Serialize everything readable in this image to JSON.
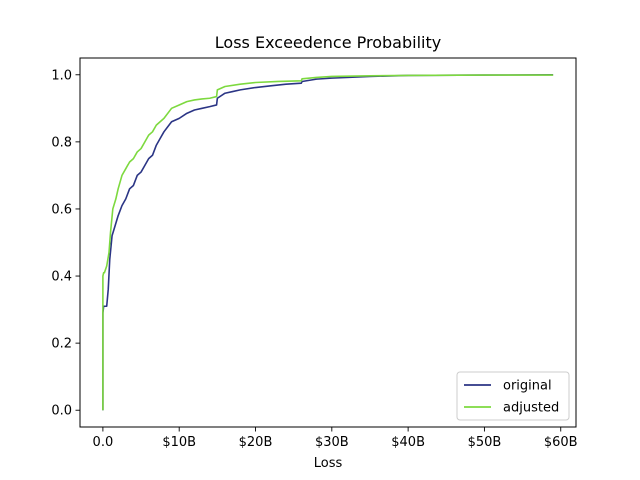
{
  "chart_data": {
    "type": "line",
    "title": "Loss Exceedence Probability",
    "xlabel": "Loss",
    "ylabel": "",
    "xlim": [
      -3.0,
      62.0
    ],
    "ylim": [
      -0.05,
      1.05
    ],
    "x_ticks": [
      {
        "value": 0,
        "label": "0.0"
      },
      {
        "value": 10,
        "label": "$10B"
      },
      {
        "value": 20,
        "label": "$20B"
      },
      {
        "value": 30,
        "label": "$30B"
      },
      {
        "value": 40,
        "label": "$40B"
      },
      {
        "value": 50,
        "label": "$50B"
      },
      {
        "value": 60,
        "label": "$60B"
      }
    ],
    "y_ticks": [
      {
        "value": 0.0,
        "label": "0.0"
      },
      {
        "value": 0.2,
        "label": "0.2"
      },
      {
        "value": 0.4,
        "label": "0.4"
      },
      {
        "value": 0.6,
        "label": "0.6"
      },
      {
        "value": 0.8,
        "label": "0.8"
      },
      {
        "value": 1.0,
        "label": "1.0"
      }
    ],
    "grid": false,
    "legend_position": "bottom-right",
    "series": [
      {
        "name": "original",
        "color": "#2b3585",
        "x": [
          0.0,
          0.0,
          0.1,
          0.2,
          0.5,
          0.7,
          0.9,
          1.2,
          1.6,
          2.0,
          2.5,
          3.0,
          3.5,
          4.0,
          4.5,
          5.0,
          5.5,
          6.0,
          6.5,
          7.0,
          7.5,
          8.0,
          9.0,
          10.0,
          11.0,
          12.0,
          13.0,
          14.0,
          14.9,
          15.0,
          16.0,
          17.0,
          18.0,
          20.0,
          22.0,
          24.0,
          26.0,
          26.1,
          28.0,
          30.0,
          35.0,
          40.0,
          50.0,
          59.0
        ],
        "y": [
          0.0,
          0.29,
          0.31,
          0.31,
          0.31,
          0.36,
          0.45,
          0.52,
          0.55,
          0.58,
          0.61,
          0.63,
          0.66,
          0.67,
          0.7,
          0.71,
          0.73,
          0.75,
          0.76,
          0.79,
          0.81,
          0.83,
          0.86,
          0.87,
          0.885,
          0.895,
          0.9,
          0.905,
          0.91,
          0.93,
          0.945,
          0.95,
          0.955,
          0.962,
          0.967,
          0.972,
          0.975,
          0.98,
          0.987,
          0.99,
          0.995,
          0.998,
          0.999,
          1.0
        ]
      },
      {
        "name": "adjusted",
        "color": "#7dd93f",
        "x": [
          0.0,
          0.0,
          0.1,
          0.2,
          0.5,
          0.8,
          1.0,
          1.3,
          1.7,
          2.0,
          2.5,
          3.0,
          3.5,
          4.0,
          4.5,
          5.0,
          5.5,
          6.0,
          6.5,
          7.0,
          7.5,
          8.0,
          9.0,
          10.0,
          11.0,
          12.0,
          13.0,
          14.0,
          14.9,
          15.0,
          16.0,
          18.0,
          20.0,
          23.0,
          26.0,
          26.1,
          28.0,
          30.0,
          35.0,
          40.0,
          50.0,
          59.0
        ],
        "y": [
          0.0,
          0.4,
          0.41,
          0.41,
          0.43,
          0.47,
          0.53,
          0.6,
          0.63,
          0.66,
          0.7,
          0.72,
          0.74,
          0.75,
          0.77,
          0.78,
          0.8,
          0.82,
          0.83,
          0.85,
          0.86,
          0.87,
          0.9,
          0.91,
          0.92,
          0.925,
          0.928,
          0.93,
          0.935,
          0.955,
          0.965,
          0.972,
          0.977,
          0.98,
          0.982,
          0.988,
          0.992,
          0.995,
          0.997,
          0.998,
          0.999,
          0.999
        ]
      }
    ]
  }
}
